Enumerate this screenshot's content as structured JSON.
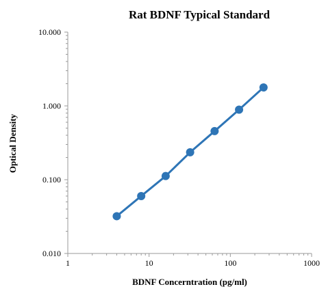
{
  "chart_data": {
    "type": "line",
    "title": "Rat BDNF Typical Standard",
    "xlabel": "BDNF Concerntration (pg/ml)",
    "ylabel": "Optical Density",
    "x_scale": "log",
    "y_scale": "log",
    "xlim": [
      1,
      1000
    ],
    "ylim": [
      0.01,
      10
    ],
    "x_ticks": [
      1,
      10,
      100,
      1000
    ],
    "x_tick_labels": [
      "1",
      "10",
      "100",
      "1000"
    ],
    "y_ticks": [
      0.01,
      0.1,
      1,
      10
    ],
    "y_tick_labels": [
      "0.010",
      "0.100",
      "1.000",
      "10.000"
    ],
    "grid": false,
    "legend": "none",
    "series": [
      {
        "color": "#2e75b6",
        "x": [
          4,
          8,
          16,
          32,
          64,
          128,
          256
        ],
        "y": [
          0.032,
          0.06,
          0.112,
          0.235,
          0.455,
          0.89,
          1.78
        ]
      }
    ]
  }
}
